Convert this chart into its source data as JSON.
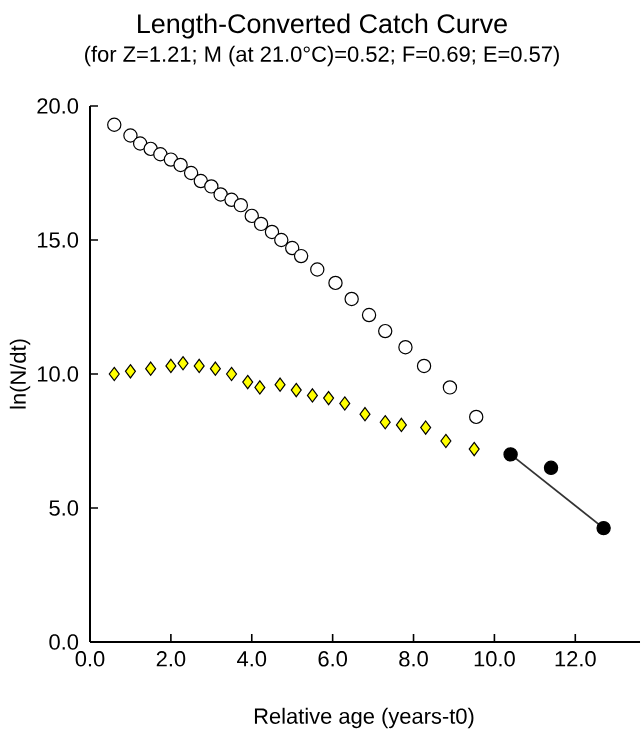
{
  "chart_data": {
    "type": "scatter",
    "title": "Length-Converted Catch Curve",
    "subtitle": "(for Z=1.21; M (at 21.0°C)=0.52; F=0.69; E=0.57)",
    "xlabel": "Relative age (years-t0)",
    "ylabel": "ln(N/dt)",
    "xlim": [
      0,
      13.6
    ],
    "ylim": [
      0,
      20
    ],
    "xticks": [
      {
        "value": 0,
        "label": "0.0"
      },
      {
        "value": 2,
        "label": "2.0"
      },
      {
        "value": 4,
        "label": "4.0"
      },
      {
        "value": 6,
        "label": "6.0"
      },
      {
        "value": 8,
        "label": "8.0"
      },
      {
        "value": 10,
        "label": "10.0"
      },
      {
        "value": 12,
        "label": "12.0"
      }
    ],
    "yticks": [
      {
        "value": 0,
        "label": "0.0"
      },
      {
        "value": 5,
        "label": "5.0"
      },
      {
        "value": 10,
        "label": "10.0"
      },
      {
        "value": 15,
        "label": "15.0"
      },
      {
        "value": 20,
        "label": "20.0"
      }
    ],
    "series": [
      {
        "marker": "circle",
        "color": "#ffffff",
        "x": [
          0.6,
          1.0,
          1.24,
          1.5,
          1.74,
          2.0,
          2.24,
          2.5,
          2.74,
          3.0,
          3.23,
          3.5,
          3.73,
          4.0,
          4.23,
          4.5,
          4.73,
          5.0,
          5.22,
          5.62,
          6.07,
          6.47,
          6.9,
          7.3,
          7.8,
          8.26,
          8.9,
          9.55
        ],
        "values": [
          19.3,
          18.9,
          18.6,
          18.4,
          18.2,
          18.0,
          17.8,
          17.5,
          17.2,
          17.0,
          16.7,
          16.5,
          16.3,
          15.9,
          15.6,
          15.3,
          15.0,
          14.7,
          14.4,
          13.9,
          13.4,
          12.8,
          12.2,
          11.6,
          11.0,
          10.3,
          9.5,
          8.4
        ]
      },
      {
        "marker": "diamond",
        "color": "#ffff00",
        "x": [
          0.6,
          1.0,
          1.5,
          2.0,
          2.3,
          2.7,
          3.1,
          3.5,
          3.9,
          4.2,
          4.7,
          5.1,
          5.5,
          5.9,
          6.3,
          6.8,
          7.3,
          7.7,
          8.3,
          8.8,
          9.5
        ],
        "values": [
          10.0,
          10.1,
          10.2,
          10.3,
          10.4,
          10.3,
          10.2,
          10.0,
          9.7,
          9.5,
          9.6,
          9.4,
          9.2,
          9.1,
          8.9,
          8.5,
          8.2,
          8.1,
          8.0,
          7.5,
          7.2
        ]
      },
      {
        "marker": "circle",
        "color": "#000000",
        "x": [
          10.4,
          11.4,
          12.7
        ],
        "values": [
          7.0,
          6.5,
          4.25
        ]
      },
      {
        "type": "line",
        "marker": "none",
        "color": "#333333",
        "x": [
          10.4,
          12.7
        ],
        "values": [
          7.0,
          4.25
        ]
      }
    ]
  }
}
